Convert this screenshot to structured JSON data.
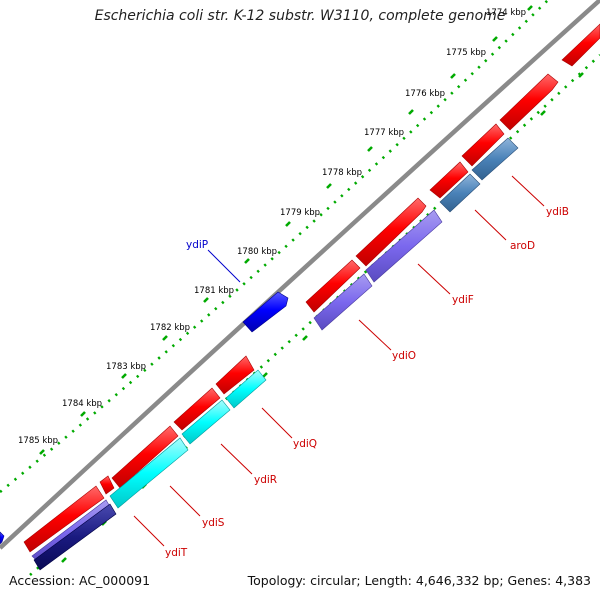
{
  "title": "Escherichia coli str. K-12 substr. W3110, complete genome",
  "footer": {
    "accession": "Accession: AC_000091",
    "topology": "Topology: circular; Length: 4,646,332 bp; Genes: 4,383"
  },
  "colors": {
    "backbone": "#8a8a8a",
    "red_gene": "#ff0000",
    "dotted_scale": "#00aa00",
    "label_red": "#cc0000",
    "label_blue": "#0000cc"
  },
  "scale_labels": [
    "1774 kbp",
    "1775 kbp",
    "1776 kbp",
    "1777 kbp",
    "1778 kbp",
    "1779 kbp",
    "1780 kbp",
    "1781 kbp",
    "1782 kbp",
    "1783 kbp",
    "1784 kbp",
    "1785 kbp"
  ],
  "gene_labels": [
    "ydiB",
    "aroD",
    "ydiF",
    "ydiO",
    "ydiP",
    "ydiQ",
    "ydiR",
    "ydiS",
    "ydiT"
  ]
}
